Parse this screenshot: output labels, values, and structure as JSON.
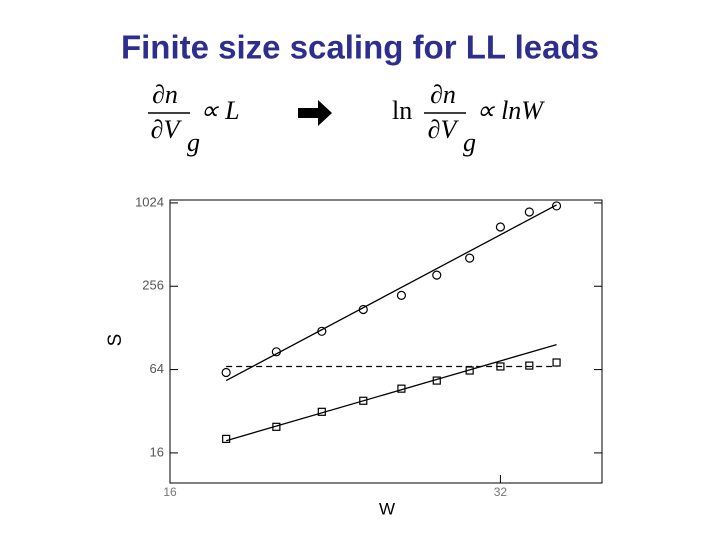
{
  "chart_data": {
    "type": "scatter",
    "title": "Finite size scaling for LL leads",
    "xlabel": "W",
    "ylabel": "S",
    "xscale": "log",
    "yscale": "log",
    "xlim": [
      16,
      39.6
    ],
    "ylim": [
      9.7,
      1075
    ],
    "xticks": [
      16,
      32
    ],
    "yticks": [
      16,
      64,
      256,
      1024
    ],
    "x": [
      18,
      20,
      22,
      24,
      26,
      28,
      30,
      32,
      34,
      36
    ],
    "series": [
      {
        "marker": "circle",
        "color": "#000000",
        "values": [
          61,
          86,
          121,
          174,
          220,
          308,
          409,
          686,
          881,
          974
        ]
      },
      {
        "marker": "square",
        "color": "#000000",
        "values": [
          20.2,
          24.7,
          31.7,
          38.1,
          46.6,
          53.3,
          63,
          67.4,
          68.4,
          72
        ]
      }
    ],
    "fits": [
      {
        "x": [
          18,
          36
        ],
        "values": [
          53.3,
          990
        ],
        "dashed": false
      },
      {
        "x": [
          18,
          36
        ],
        "values": [
          19.6,
          97
        ],
        "dashed": false
      },
      {
        "x": [
          18,
          36
        ],
        "values": [
          67.4,
          67.4
        ],
        "dashed": true
      }
    ]
  },
  "formulas": {
    "left": {
      "numerator": "∂n",
      "denominator": "∂V",
      "subscript": "g",
      "rhs": "∝ L"
    },
    "right": {
      "prefix": "ln",
      "numerator": "∂n",
      "denominator": "∂V",
      "subscript": "g",
      "rhs": "∝ lnW"
    }
  }
}
